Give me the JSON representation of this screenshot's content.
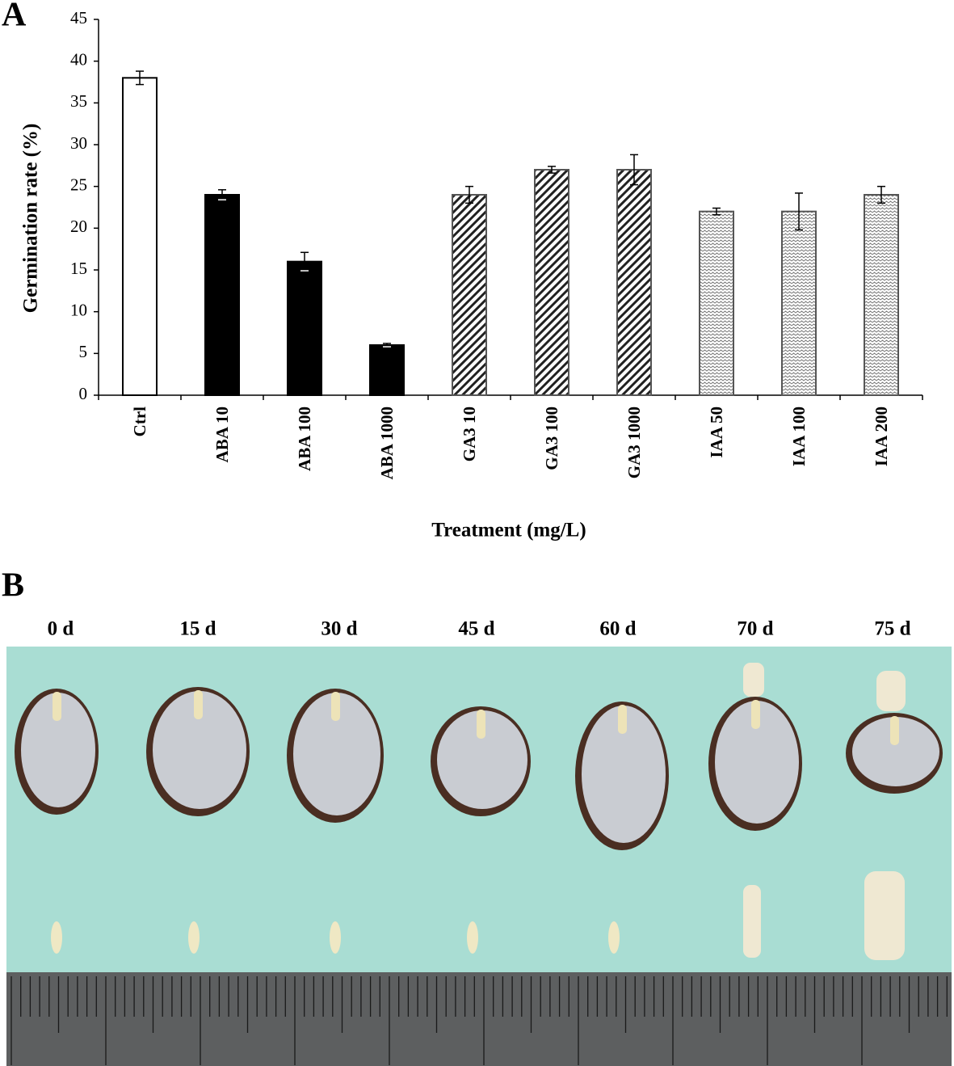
{
  "panel_labels": [
    "A",
    "B"
  ],
  "chart_data": {
    "type": "bar",
    "y_label": "Germination rate (%)",
    "x_label": "Treatment (mg/L)",
    "categories": [
      "Ctrl",
      "ABA 10",
      "ABA 100",
      "ABA 1000",
      "GA3 10",
      "GA3 100",
      "GA3 1000",
      "IAA 50",
      "IAA 100",
      "IAA 200"
    ],
    "values": [
      38,
      24,
      16,
      6,
      24,
      27,
      27,
      22,
      22,
      24
    ],
    "errors": [
      0.8,
      0.6,
      1.1,
      0.2,
      1,
      0.4,
      1.8,
      0.4,
      2.2,
      1
    ],
    "fills": [
      "white",
      "black",
      "black",
      "black",
      "hatched",
      "hatched",
      "hatched",
      "zigzag",
      "zigzag",
      "zigzag"
    ],
    "ylim": [
      0,
      45
    ],
    "yticks": [
      0,
      5,
      10,
      15,
      20,
      25,
      30,
      35,
      40,
      45
    ]
  },
  "photo_labels": [
    "0 d",
    "15 d",
    "30 d",
    "45 d",
    "60 d",
    "70 d",
    "75 d"
  ]
}
